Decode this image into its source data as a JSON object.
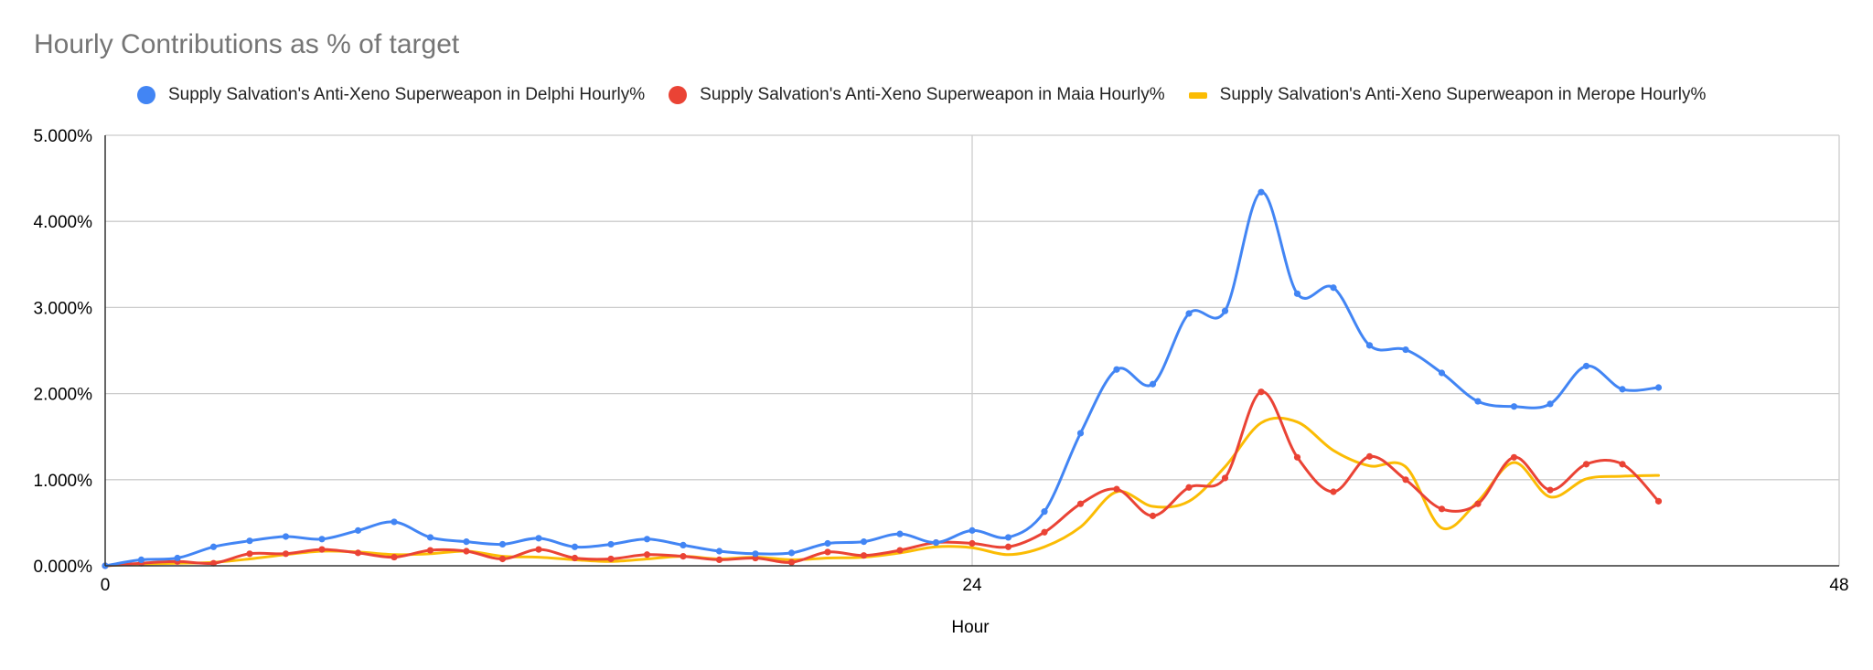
{
  "chart_data": {
    "type": "line",
    "title": "Hourly Contributions as % of target",
    "xlabel": "Hour",
    "ylabel": "",
    "xlim": [
      0,
      48
    ],
    "ylim": [
      0,
      5
    ],
    "x_ticks": [
      "0",
      "24",
      "48"
    ],
    "y_ticks": [
      "0.000%",
      "1.000%",
      "2.000%",
      "3.000%",
      "4.000%",
      "5.000%"
    ],
    "grid": true,
    "legend_position": "top",
    "series": [
      {
        "name": "Supply Salvation's Anti-Xeno Superweapon in Delphi Hourly%",
        "color": "#4285f4",
        "marker": "dot",
        "x": [
          0,
          1,
          2,
          3,
          4,
          5,
          6,
          7,
          8,
          9,
          10,
          11,
          12,
          13,
          14,
          15,
          16,
          17,
          18,
          19,
          20,
          21,
          22,
          23,
          24,
          25,
          26,
          27,
          28,
          29,
          30,
          31,
          32,
          33,
          34,
          35,
          36,
          37,
          38,
          39,
          40,
          41,
          42,
          43
        ],
        "y": [
          0.0,
          0.07,
          0.09,
          0.22,
          0.29,
          0.34,
          0.31,
          0.41,
          0.51,
          0.33,
          0.28,
          0.25,
          0.32,
          0.22,
          0.25,
          0.31,
          0.24,
          0.17,
          0.14,
          0.15,
          0.26,
          0.28,
          0.37,
          0.27,
          0.41,
          0.33,
          0.63,
          1.54,
          2.28,
          2.11,
          2.93,
          2.96,
          4.34,
          3.16,
          3.23,
          2.56,
          2.51,
          2.24,
          1.91,
          1.85,
          1.88,
          2.32,
          2.05,
          2.07
        ]
      },
      {
        "name": "Supply Salvation's Anti-Xeno Superweapon in Maia Hourly%",
        "color": "#ea4335",
        "marker": "dot",
        "x": [
          0,
          1,
          2,
          3,
          4,
          5,
          6,
          7,
          8,
          9,
          10,
          11,
          12,
          13,
          14,
          15,
          16,
          17,
          18,
          19,
          20,
          21,
          22,
          23,
          24,
          25,
          26,
          27,
          28,
          29,
          30,
          31,
          32,
          33,
          34,
          35,
          36,
          37,
          38,
          39,
          40,
          41,
          42,
          43
        ],
        "y": [
          0.0,
          0.03,
          0.05,
          0.03,
          0.14,
          0.14,
          0.19,
          0.15,
          0.1,
          0.18,
          0.17,
          0.08,
          0.19,
          0.09,
          0.08,
          0.13,
          0.11,
          0.07,
          0.09,
          0.04,
          0.16,
          0.12,
          0.18,
          0.27,
          0.26,
          0.22,
          0.39,
          0.72,
          0.89,
          0.58,
          0.91,
          1.02,
          2.02,
          1.26,
          0.86,
          1.27,
          1.0,
          0.66,
          0.72,
          1.26,
          0.88,
          1.18,
          1.18,
          0.75
        ]
      },
      {
        "name": "Supply Salvation's Anti-Xeno Superweapon in Merope Hourly%",
        "color": "#fbbc04",
        "marker": "none",
        "x": [
          0,
          1,
          2,
          3,
          4,
          5,
          6,
          7,
          8,
          9,
          10,
          11,
          12,
          13,
          14,
          15,
          16,
          17,
          18,
          19,
          20,
          21,
          22,
          23,
          24,
          25,
          26,
          27,
          28,
          29,
          30,
          31,
          32,
          33,
          34,
          35,
          36,
          37,
          38,
          39,
          40,
          41,
          42,
          43
        ],
        "y": [
          0.0,
          0.02,
          0.03,
          0.04,
          0.08,
          0.13,
          0.17,
          0.16,
          0.13,
          0.14,
          0.17,
          0.11,
          0.1,
          0.07,
          0.05,
          0.08,
          0.11,
          0.08,
          0.1,
          0.07,
          0.09,
          0.1,
          0.15,
          0.22,
          0.21,
          0.13,
          0.22,
          0.45,
          0.86,
          0.69,
          0.75,
          1.15,
          1.66,
          1.67,
          1.34,
          1.16,
          1.15,
          0.44,
          0.75,
          1.2,
          0.8,
          1.01,
          1.04,
          1.05
        ]
      }
    ]
  }
}
